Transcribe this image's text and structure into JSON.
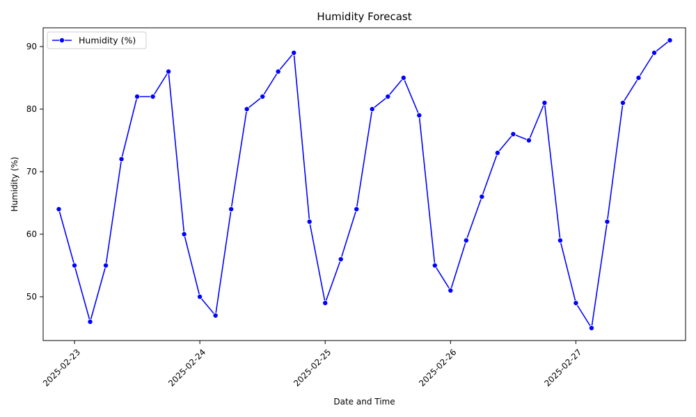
{
  "chart_data": {
    "type": "line",
    "title": "Humidity Forecast",
    "xlabel": "Date and Time",
    "ylabel": "Humidity (%)",
    "xlim": [
      "2025-02-22T18:00",
      "2025-02-27T21:00"
    ],
    "ylim": [
      43,
      93
    ],
    "x_ticks": [
      "2025-02-23",
      "2025-02-24",
      "2025-02-25",
      "2025-02-26",
      "2025-02-27"
    ],
    "y_ticks": [
      50,
      60,
      70,
      80,
      90
    ],
    "grid": false,
    "legend": {
      "position": "top-left"
    },
    "colors": {
      "series": "#0000ff",
      "marker": "#0000ff"
    },
    "series": [
      {
        "name": "Humidity (%)",
        "x": [
          "2025-02-22T21:00",
          "2025-02-23T00:00",
          "2025-02-23T03:00",
          "2025-02-23T06:00",
          "2025-02-23T09:00",
          "2025-02-23T12:00",
          "2025-02-23T15:00",
          "2025-02-23T18:00",
          "2025-02-23T21:00",
          "2025-02-24T00:00",
          "2025-02-24T03:00",
          "2025-02-24T06:00",
          "2025-02-24T09:00",
          "2025-02-24T12:00",
          "2025-02-24T15:00",
          "2025-02-24T18:00",
          "2025-02-24T21:00",
          "2025-02-25T00:00",
          "2025-02-25T03:00",
          "2025-02-25T06:00",
          "2025-02-25T09:00",
          "2025-02-25T12:00",
          "2025-02-25T15:00",
          "2025-02-25T18:00",
          "2025-02-25T21:00",
          "2025-02-26T00:00",
          "2025-02-26T03:00",
          "2025-02-26T06:00",
          "2025-02-26T09:00",
          "2025-02-26T12:00",
          "2025-02-26T15:00",
          "2025-02-26T18:00",
          "2025-02-26T21:00",
          "2025-02-27T00:00",
          "2025-02-27T03:00",
          "2025-02-27T06:00",
          "2025-02-27T09:00",
          "2025-02-27T12:00",
          "2025-02-27T15:00",
          "2025-02-27T18:00"
        ],
        "values": [
          64,
          55,
          46,
          55,
          72,
          82,
          82,
          86,
          60,
          50,
          47,
          64,
          80,
          82,
          86,
          89,
          62,
          49,
          56,
          64,
          80,
          82,
          85,
          79,
          55,
          51,
          59,
          66,
          73,
          76,
          75,
          81,
          59,
          49,
          45,
          62,
          81,
          85,
          89,
          91
        ]
      }
    ]
  }
}
